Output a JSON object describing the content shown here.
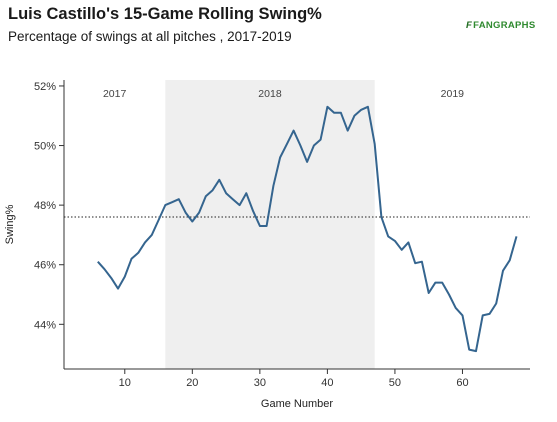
{
  "header": {
    "title": "Luis Castillo's 15-Game Rolling Swing%",
    "subtitle": "Percentage of swings at all pitches , 2017-2019",
    "logo_mark": "F",
    "logo_text": "FANGRAPHS"
  },
  "chart_data": {
    "type": "line",
    "title": "Luis Castillo's 15-Game Rolling Swing%",
    "subtitle": "Percentage of swings at all pitches , 2017-2019",
    "xlabel": "Game Number",
    "ylabel": "Swing%",
    "xlim": [
      1,
      70
    ],
    "ylim": [
      42.5,
      52.2
    ],
    "xticks": [
      10,
      20,
      30,
      40,
      50,
      60
    ],
    "xtick_labels": [
      "10",
      "20",
      "30",
      "40",
      "50",
      "60"
    ],
    "yticks": [
      44,
      46,
      48,
      50,
      52
    ],
    "ytick_labels": [
      "44%",
      "46%",
      "48%",
      "50%",
      "52%"
    ],
    "grid": false,
    "reference_line": {
      "y": 47.6,
      "style": "dotted"
    },
    "periods": [
      {
        "label": "2017",
        "start": 1,
        "end": 16,
        "shaded": false
      },
      {
        "label": "2018",
        "start": 16,
        "end": 47,
        "shaded": true
      },
      {
        "label": "2019",
        "start": 47,
        "end": 70,
        "shaded": false
      }
    ],
    "line_color": "#35658f",
    "shade_color": "#efefef",
    "series": [
      {
        "x": [
          6,
          7,
          8,
          9,
          10,
          11,
          12,
          13,
          14,
          15,
          16,
          17,
          18,
          19,
          20,
          21,
          22,
          23,
          24,
          25,
          26,
          27,
          28,
          29,
          30,
          31,
          32,
          33,
          34,
          35,
          36,
          37,
          38,
          39,
          40,
          41,
          42,
          43,
          44,
          45,
          46,
          47,
          48,
          49,
          50,
          51,
          52,
          53,
          54,
          55,
          56,
          57,
          58,
          59,
          60,
          61,
          62,
          63,
          64,
          65,
          66,
          67,
          68
        ],
        "values": [
          46.1,
          45.85,
          45.55,
          45.2,
          45.6,
          46.2,
          46.4,
          46.75,
          47.0,
          47.5,
          48.0,
          48.1,
          48.2,
          47.75,
          47.45,
          47.75,
          48.3,
          48.5,
          48.85,
          48.4,
          48.2,
          48.0,
          48.4,
          47.8,
          47.3,
          47.3,
          48.65,
          49.6,
          50.05,
          50.5,
          50.0,
          49.45,
          50.0,
          50.2,
          51.3,
          51.1,
          51.1,
          50.5,
          51.0,
          51.2,
          51.3,
          50.05,
          47.6,
          46.95,
          46.8,
          46.5,
          46.75,
          46.05,
          46.1,
          45.05,
          45.4,
          45.4,
          45.0,
          44.55,
          44.3,
          43.15,
          43.1,
          44.3,
          44.35,
          44.7,
          45.8,
          46.15,
          46.95
        ]
      }
    ]
  }
}
